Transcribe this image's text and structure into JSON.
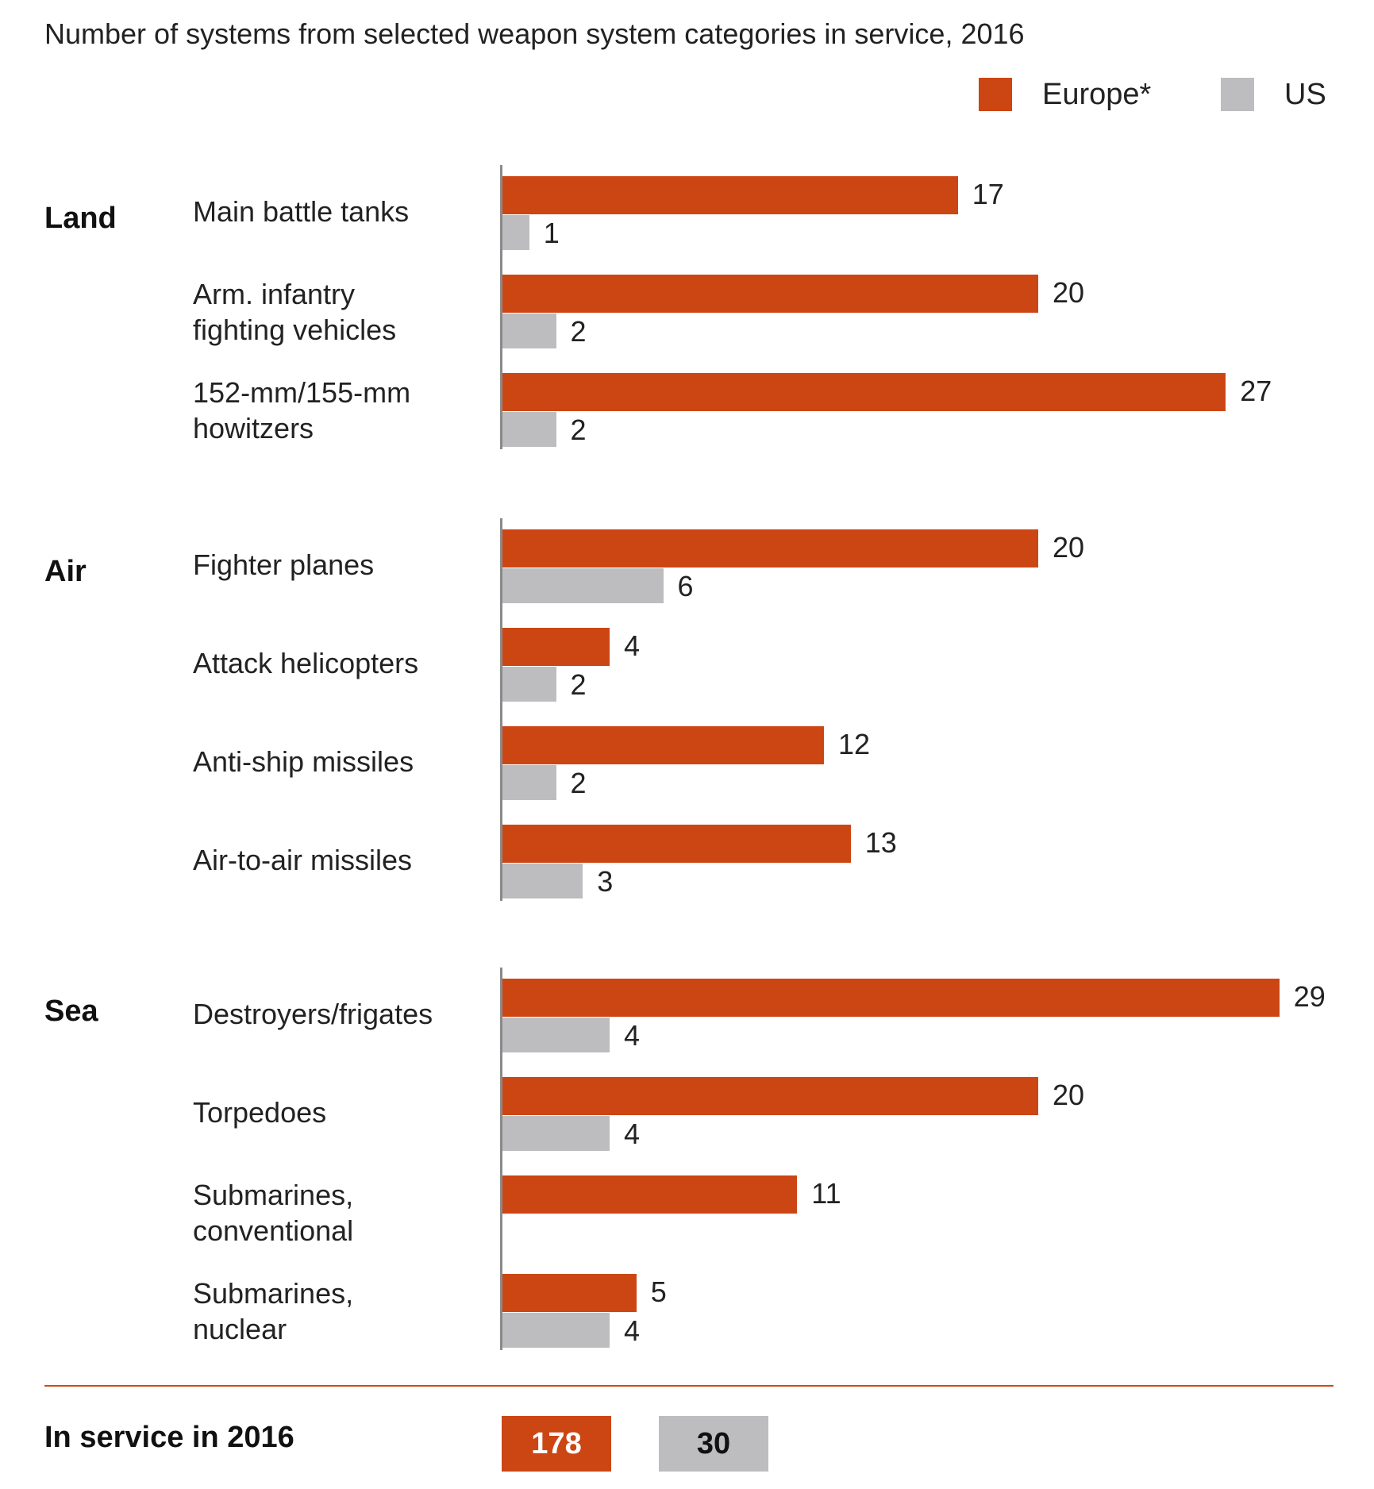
{
  "chart_data": {
    "type": "bar",
    "orientation": "horizontal",
    "title": "Number of systems from selected weapon system categories in service, 2016",
    "legend": [
      {
        "name": "Europe*",
        "color": "#cc4614"
      },
      {
        "name": "US",
        "color": "#bdbdbf"
      }
    ],
    "legend_position": "top-right",
    "groups": [
      {
        "name": "Land",
        "categories": [
          {
            "label": "Main battle tanks",
            "europe": 17,
            "us": 1
          },
          {
            "label": "Arm. infantry\nfighting vehicles",
            "europe": 20,
            "us": 2
          },
          {
            "label": "152-mm/155-mm\nhowitzers",
            "europe": 27,
            "us": 2
          }
        ]
      },
      {
        "name": "Air",
        "categories": [
          {
            "label": "Fighter planes",
            "europe": 20,
            "us": 6
          },
          {
            "label": "Attack helicopters",
            "europe": 4,
            "us": 2
          },
          {
            "label": "Anti-ship missiles",
            "europe": 12,
            "us": 2
          },
          {
            "label": "Air-to-air missiles",
            "europe": 13,
            "us": 3
          }
        ]
      },
      {
        "name": "Sea",
        "categories": [
          {
            "label": "Destroyers/frigates",
            "europe": 29,
            "us": 4
          },
          {
            "label": "Torpedoes",
            "europe": 20,
            "us": 4
          },
          {
            "label": "Submarines,\nconventional",
            "europe": 11,
            "us": null
          },
          {
            "label": "Submarines,\nnuclear",
            "europe": 5,
            "us": 4
          }
        ]
      }
    ],
    "grid": false,
    "totals": {
      "label": "In service in 2016",
      "europe": "178",
      "us": "30"
    }
  }
}
